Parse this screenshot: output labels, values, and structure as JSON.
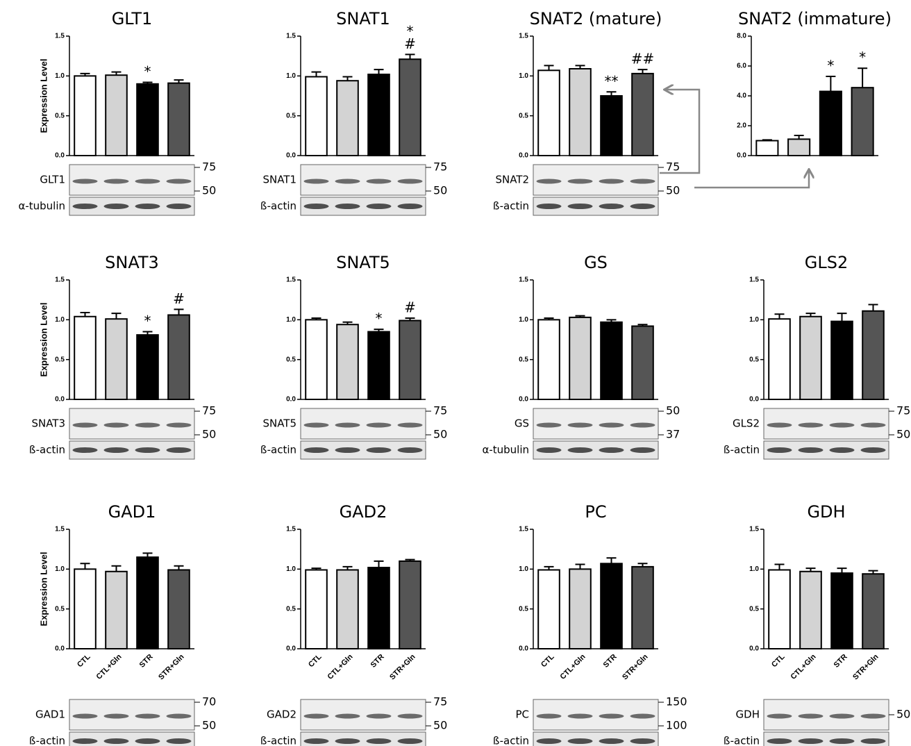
{
  "chart_data": [
    {
      "type": "bar",
      "title": "GLT1",
      "ylabel": "Expression Level",
      "categories": [
        null,
        null,
        null,
        null
      ],
      "values": [
        1.0,
        1.01,
        0.9,
        0.91
      ],
      "errors": [
        0.03,
        0.04,
        0.02,
        0.04
      ],
      "colors": [
        "#ffffff",
        "#d3d3d3",
        "#000000",
        "#555555"
      ],
      "annotations": [
        null,
        null,
        "*",
        null
      ],
      "ylim": [
        0,
        1.5
      ],
      "yticks": [
        {
          "value": 0,
          "label": "0.0"
        },
        {
          "value": 0.5,
          "label": "0.5"
        },
        {
          "value": 1,
          "label": "1.0"
        },
        {
          "value": 1.5,
          "label": "1.5"
        }
      ],
      "blot_labels": [
        "GLT1",
        "α-tubulin"
      ],
      "mw_markers": [
        "75",
        "50"
      ]
    },
    {
      "type": "bar",
      "title": "SNAT1",
      "categories": [
        null,
        null,
        null,
        null
      ],
      "values": [
        0.99,
        0.94,
        1.02,
        1.21
      ],
      "errors": [
        0.06,
        0.05,
        0.06,
        0.06
      ],
      "colors": [
        "#ffffff",
        "#d3d3d3",
        "#000000",
        "#555555"
      ],
      "annotations": [
        null,
        null,
        null,
        [
          "*",
          "#"
        ]
      ],
      "ylim": [
        0,
        1.5
      ],
      "yticks": [
        {
          "value": 0,
          "label": "0.0"
        },
        {
          "value": 0.5,
          "label": "0.5"
        },
        {
          "value": 1,
          "label": "1.0"
        },
        {
          "value": 1.5,
          "label": "1.5"
        }
      ],
      "blot_labels": [
        "SNAT1",
        "ß-actin"
      ],
      "mw_markers": [
        "75",
        "50"
      ]
    },
    {
      "type": "bar",
      "title": "SNAT2 (mature)",
      "categories": [
        null,
        null,
        null,
        null
      ],
      "values": [
        1.07,
        1.09,
        0.75,
        1.03
      ],
      "errors": [
        0.06,
        0.04,
        0.05,
        0.05
      ],
      "colors": [
        "#ffffff",
        "#d3d3d3",
        "#000000",
        "#555555"
      ],
      "annotations": [
        null,
        null,
        "**",
        "##"
      ],
      "ylim": [
        0,
        1.5
      ],
      "yticks": [
        {
          "value": 0,
          "label": "0.0"
        },
        {
          "value": 0.5,
          "label": "0.5"
        },
        {
          "value": 1,
          "label": "1.0"
        },
        {
          "value": 1.5,
          "label": "1.5"
        }
      ],
      "blot_labels": [
        "SNAT2",
        "ß-actin"
      ],
      "mw_markers": [
        "75",
        "50"
      ]
    },
    {
      "type": "bar",
      "title": "SNAT2 (immature)",
      "categories": [
        null,
        null,
        null,
        null
      ],
      "values": [
        1.0,
        1.1,
        4.3,
        4.55
      ],
      "errors": [
        0.05,
        0.25,
        1.0,
        1.3
      ],
      "colors": [
        "#ffffff",
        "#d3d3d3",
        "#000000",
        "#555555"
      ],
      "annotations": [
        null,
        null,
        "*",
        "*"
      ],
      "ylim": [
        0,
        8
      ],
      "yticks": [
        {
          "value": 0,
          "label": "0.0"
        },
        {
          "value": 2,
          "label": "2.0"
        },
        {
          "value": 4,
          "label": "4.0"
        },
        {
          "value": 6,
          "label": "6.0"
        },
        {
          "value": 8,
          "label": "8.0"
        }
      ]
    },
    {
      "type": "bar",
      "title": "SNAT3",
      "ylabel": "Expression Level",
      "categories": [
        null,
        null,
        null,
        null
      ],
      "values": [
        1.04,
        1.01,
        0.81,
        1.06
      ],
      "errors": [
        0.05,
        0.07,
        0.04,
        0.07
      ],
      "colors": [
        "#ffffff",
        "#d3d3d3",
        "#000000",
        "#555555"
      ],
      "annotations": [
        null,
        null,
        "*",
        "#"
      ],
      "ylim": [
        0,
        1.5
      ],
      "yticks": [
        {
          "value": 0,
          "label": "0.0"
        },
        {
          "value": 0.5,
          "label": "0.5"
        },
        {
          "value": 1,
          "label": "1.0"
        },
        {
          "value": 1.5,
          "label": "1.5"
        }
      ],
      "blot_labels": [
        "SNAT3",
        "ß-actin"
      ],
      "mw_markers": [
        "75",
        "50"
      ]
    },
    {
      "type": "bar",
      "title": "SNAT5",
      "categories": [
        null,
        null,
        null,
        null
      ],
      "values": [
        1.0,
        0.94,
        0.85,
        0.99
      ],
      "errors": [
        0.02,
        0.03,
        0.03,
        0.03
      ],
      "colors": [
        "#ffffff",
        "#d3d3d3",
        "#000000",
        "#555555"
      ],
      "annotations": [
        null,
        null,
        "*",
        "#"
      ],
      "ylim": [
        0,
        1.5
      ],
      "yticks": [
        {
          "value": 0,
          "label": "0.0"
        },
        {
          "value": 0.5,
          "label": "0.5"
        },
        {
          "value": 1,
          "label": "1.0"
        },
        {
          "value": 1.5,
          "label": "1.5"
        }
      ],
      "blot_labels": [
        "SNAT5",
        "ß-actin"
      ],
      "mw_markers": [
        "75",
        "50"
      ]
    },
    {
      "type": "bar",
      "title": "GS",
      "categories": [
        null,
        null,
        null,
        null
      ],
      "values": [
        1.0,
        1.03,
        0.97,
        0.92
      ],
      "errors": [
        0.02,
        0.02,
        0.03,
        0.02
      ],
      "colors": [
        "#ffffff",
        "#d3d3d3",
        "#000000",
        "#555555"
      ],
      "annotations": [
        null,
        null,
        null,
        null
      ],
      "ylim": [
        0,
        1.5
      ],
      "yticks": [
        {
          "value": 0,
          "label": "0.0"
        },
        {
          "value": 0.5,
          "label": "0.5"
        },
        {
          "value": 1,
          "label": "1.0"
        },
        {
          "value": 1.5,
          "label": "1.5"
        }
      ],
      "blot_labels": [
        "GS",
        "α-tubulin"
      ],
      "mw_markers": [
        "50",
        "37"
      ]
    },
    {
      "type": "bar",
      "title": "GLS2",
      "categories": [
        null,
        null,
        null,
        null
      ],
      "values": [
        1.01,
        1.04,
        0.98,
        1.11
      ],
      "errors": [
        0.06,
        0.04,
        0.1,
        0.08
      ],
      "colors": [
        "#ffffff",
        "#d3d3d3",
        "#000000",
        "#555555"
      ],
      "annotations": [
        null,
        null,
        null,
        null
      ],
      "ylim": [
        0,
        1.5
      ],
      "yticks": [
        {
          "value": 0,
          "label": "0.0"
        },
        {
          "value": 0.5,
          "label": "0.5"
        },
        {
          "value": 1,
          "label": "1.0"
        },
        {
          "value": 1.5,
          "label": "1.5"
        }
      ],
      "blot_labels": [
        "GLS2",
        "ß-actin"
      ],
      "mw_markers": [
        "75",
        "50"
      ]
    },
    {
      "type": "bar",
      "title": "GAD1",
      "ylabel": "Expression Level",
      "categories": [
        "CTL",
        "CTL+Gln",
        "STR",
        "STR+Gln"
      ],
      "values": [
        1.0,
        0.97,
        1.15,
        0.99
      ],
      "errors": [
        0.07,
        0.07,
        0.05,
        0.05
      ],
      "colors": [
        "#ffffff",
        "#d3d3d3",
        "#000000",
        "#555555"
      ],
      "annotations": [
        null,
        null,
        null,
        null
      ],
      "ylim": [
        0,
        1.5
      ],
      "yticks": [
        {
          "value": 0,
          "label": "0.0"
        },
        {
          "value": 0.5,
          "label": "0.5"
        },
        {
          "value": 1,
          "label": "1.0"
        },
        {
          "value": 1.5,
          "label": "1.5"
        }
      ],
      "blot_labels": [
        "GAD1",
        "ß-actin"
      ],
      "mw_markers": [
        "70",
        "50"
      ]
    },
    {
      "type": "bar",
      "title": "GAD2",
      "categories": [
        "CTL",
        "CTL+Gln",
        "STR",
        "STR+Gln"
      ],
      "values": [
        0.99,
        0.99,
        1.02,
        1.1
      ],
      "errors": [
        0.02,
        0.04,
        0.08,
        0.02
      ],
      "colors": [
        "#ffffff",
        "#d3d3d3",
        "#000000",
        "#555555"
      ],
      "annotations": [
        null,
        null,
        null,
        null
      ],
      "ylim": [
        0,
        1.5
      ],
      "yticks": [
        {
          "value": 0,
          "label": "0.0"
        },
        {
          "value": 0.5,
          "label": "0.5"
        },
        {
          "value": 1,
          "label": "1.0"
        },
        {
          "value": 1.5,
          "label": "1.5"
        }
      ],
      "blot_labels": [
        "GAD2",
        "ß-actin"
      ],
      "mw_markers": [
        "75",
        "50"
      ]
    },
    {
      "type": "bar",
      "title": "PC",
      "categories": [
        "CTL",
        "CTL+Gln",
        "STR",
        "STR+Gln"
      ],
      "values": [
        0.99,
        1.0,
        1.07,
        1.03
      ],
      "errors": [
        0.04,
        0.06,
        0.07,
        0.04
      ],
      "colors": [
        "#ffffff",
        "#d3d3d3",
        "#000000",
        "#555555"
      ],
      "annotations": [
        null,
        null,
        null,
        null
      ],
      "ylim": [
        0,
        1.5
      ],
      "yticks": [
        {
          "value": 0,
          "label": "0.0"
        },
        {
          "value": 0.5,
          "label": "0.5"
        },
        {
          "value": 1,
          "label": "1.0"
        },
        {
          "value": 1.5,
          "label": "1.5"
        }
      ],
      "blot_labels": [
        "PC",
        "ß-actin"
      ],
      "mw_markers": [
        "150",
        "100"
      ]
    },
    {
      "type": "bar",
      "title": "GDH",
      "categories": [
        "CTL",
        "CTL+Gln",
        "STR",
        "STR+Gln"
      ],
      "values": [
        0.99,
        0.97,
        0.95,
        0.94
      ],
      "errors": [
        0.07,
        0.04,
        0.06,
        0.04
      ],
      "colors": [
        "#ffffff",
        "#d3d3d3",
        "#000000",
        "#555555"
      ],
      "annotations": [
        null,
        null,
        null,
        null
      ],
      "ylim": [
        0,
        1.5
      ],
      "yticks": [
        {
          "value": 0,
          "label": "0.0"
        },
        {
          "value": 0.5,
          "label": "0.5"
        },
        {
          "value": 1,
          "label": "1.0"
        },
        {
          "value": 1.5,
          "label": "1.5"
        }
      ],
      "blot_labels": [
        "GDH",
        "ß-actin"
      ],
      "mw_markers": [
        "50"
      ]
    }
  ]
}
